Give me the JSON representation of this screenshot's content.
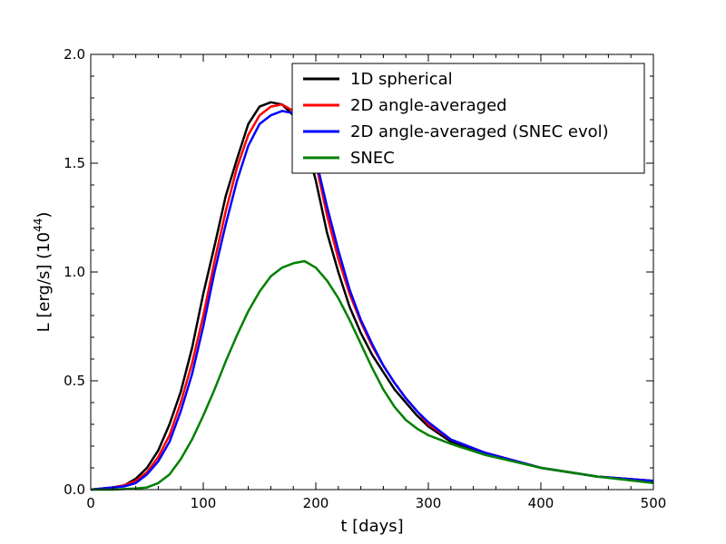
{
  "chart_data": {
    "type": "line",
    "xlabel": "t [days]",
    "ylabel_main": "L [erg/s] (10",
    "ylabel_exponent": "44",
    "ylabel_close": ")",
    "xlim": [
      0,
      500
    ],
    "ylim": [
      0.0,
      2.0
    ],
    "x_ticks": [
      0,
      100,
      200,
      300,
      400,
      500
    ],
    "x_tick_labels": [
      "0",
      "100",
      "200",
      "300",
      "400",
      "500"
    ],
    "y_ticks": [
      0.0,
      0.5,
      1.0,
      1.5,
      2.0
    ],
    "y_tick_labels": [
      "0.0",
      "0.5",
      "1.0",
      "1.5",
      "2.0"
    ],
    "grid": false,
    "legend_position": "top-right",
    "series": [
      {
        "name": "1D spherical",
        "color": "#000000",
        "x": [
          0,
          20,
          30,
          40,
          50,
          60,
          70,
          80,
          90,
          100,
          110,
          120,
          130,
          140,
          150,
          160,
          170,
          180,
          190,
          200,
          210,
          220,
          230,
          240,
          250,
          260,
          270,
          280,
          290,
          300,
          320,
          350,
          400,
          450,
          500
        ],
        "y": [
          0.0,
          0.01,
          0.02,
          0.05,
          0.1,
          0.18,
          0.3,
          0.45,
          0.65,
          0.9,
          1.12,
          1.35,
          1.52,
          1.68,
          1.76,
          1.78,
          1.77,
          1.72,
          1.62,
          1.42,
          1.18,
          1.0,
          0.84,
          0.72,
          0.62,
          0.54,
          0.46,
          0.4,
          0.34,
          0.29,
          0.22,
          0.17,
          0.1,
          0.06,
          0.04
        ]
      },
      {
        "name": "2D angle-averaged",
        "color": "#ff0000",
        "x": [
          0,
          20,
          30,
          40,
          50,
          60,
          70,
          80,
          90,
          100,
          110,
          120,
          130,
          140,
          150,
          160,
          170,
          180,
          190,
          200,
          210,
          220,
          230,
          240,
          250,
          260,
          270,
          280,
          290,
          300,
          320,
          350,
          400,
          450,
          500
        ],
        "y": [
          0.0,
          0.01,
          0.02,
          0.04,
          0.08,
          0.15,
          0.25,
          0.4,
          0.58,
          0.8,
          1.05,
          1.28,
          1.48,
          1.63,
          1.72,
          1.76,
          1.77,
          1.74,
          1.66,
          1.5,
          1.26,
          1.06,
          0.9,
          0.77,
          0.66,
          0.57,
          0.49,
          0.42,
          0.36,
          0.3,
          0.23,
          0.17,
          0.1,
          0.06,
          0.04
        ]
      },
      {
        "name": "2D angle-averaged (SNEC evol)",
        "color": "#0000ff",
        "x": [
          0,
          20,
          30,
          40,
          50,
          60,
          70,
          80,
          90,
          100,
          110,
          120,
          130,
          140,
          150,
          160,
          170,
          180,
          190,
          200,
          210,
          220,
          230,
          240,
          250,
          260,
          270,
          280,
          290,
          300,
          320,
          350,
          400,
          450,
          500
        ],
        "y": [
          0.0,
          0.01,
          0.015,
          0.03,
          0.07,
          0.13,
          0.22,
          0.36,
          0.53,
          0.75,
          1.0,
          1.22,
          1.42,
          1.58,
          1.68,
          1.72,
          1.74,
          1.73,
          1.68,
          1.52,
          1.3,
          1.1,
          0.92,
          0.78,
          0.67,
          0.57,
          0.49,
          0.42,
          0.36,
          0.31,
          0.23,
          0.17,
          0.1,
          0.06,
          0.04
        ]
      },
      {
        "name": "SNEC",
        "color": "#008000",
        "x": [
          0,
          20,
          40,
          50,
          60,
          70,
          80,
          90,
          100,
          110,
          120,
          130,
          140,
          150,
          160,
          170,
          180,
          190,
          200,
          210,
          220,
          230,
          240,
          250,
          260,
          270,
          280,
          290,
          300,
          320,
          350,
          400,
          450,
          500
        ],
        "y": [
          0.0,
          0.0,
          0.005,
          0.01,
          0.03,
          0.07,
          0.14,
          0.23,
          0.34,
          0.46,
          0.59,
          0.71,
          0.82,
          0.91,
          0.98,
          1.02,
          1.04,
          1.05,
          1.02,
          0.96,
          0.88,
          0.78,
          0.67,
          0.56,
          0.46,
          0.38,
          0.32,
          0.28,
          0.25,
          0.21,
          0.16,
          0.1,
          0.06,
          0.03
        ]
      }
    ]
  }
}
